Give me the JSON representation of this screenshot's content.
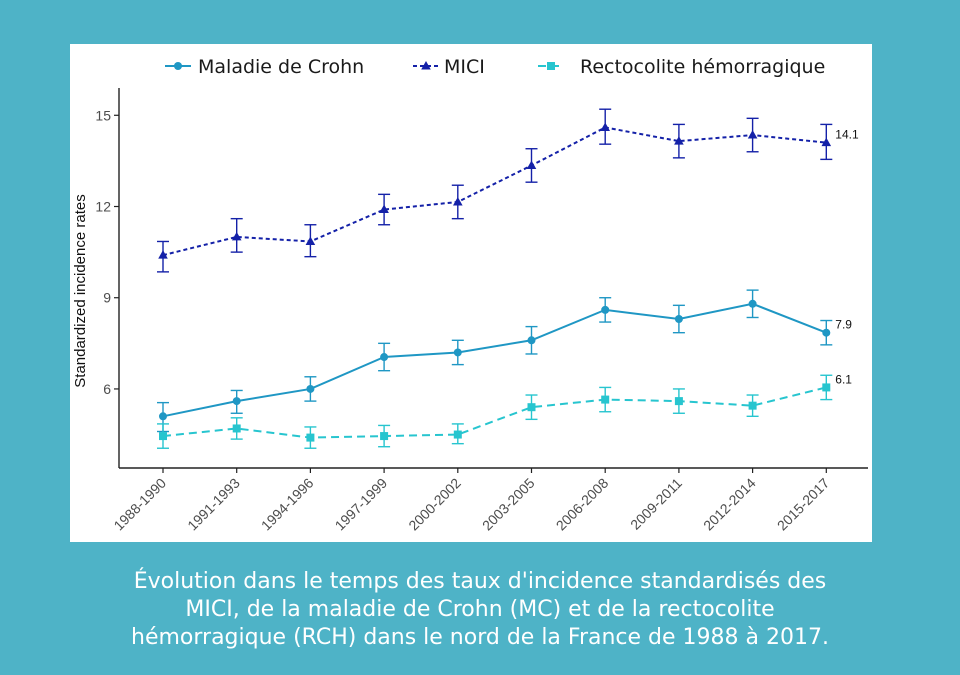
{
  "chart_data": {
    "type": "line",
    "title": "",
    "xlabel": "",
    "ylabel": "Standardized incidence rates",
    "categories": [
      "1988-1990",
      "1991-1993",
      "1994-1996",
      "1997-1999",
      "2000-2002",
      "2003-2005",
      "2006-2008",
      "2009-2011",
      "2012-2014",
      "2015-2017"
    ],
    "yticks": [
      6,
      9,
      12,
      15
    ],
    "ylim": [
      3.4,
      15.7
    ],
    "grid": false,
    "legend_position": "top",
    "series": [
      {
        "name": "Maladie de Crohn",
        "marker": "circle",
        "line_style": "solid",
        "color": "#1f97c4",
        "values": [
          5.1,
          5.6,
          6.0,
          7.05,
          7.2,
          7.6,
          8.6,
          8.3,
          8.8,
          7.85
        ],
        "lower": [
          4.6,
          5.2,
          5.6,
          6.6,
          6.8,
          7.15,
          8.2,
          7.85,
          8.35,
          7.45
        ],
        "upper": [
          5.55,
          5.95,
          6.4,
          7.5,
          7.6,
          8.05,
          9.0,
          8.75,
          9.25,
          8.25
        ],
        "end_label": "7.9"
      },
      {
        "name": "MICI",
        "marker": "triangle",
        "line_style": "dotted",
        "color": "#1421a8",
        "values": [
          10.4,
          11.0,
          10.85,
          11.9,
          12.15,
          13.35,
          14.6,
          14.15,
          14.35,
          14.1
        ],
        "lower": [
          9.85,
          10.5,
          10.35,
          11.4,
          11.6,
          12.8,
          14.05,
          13.6,
          13.8,
          13.55
        ],
        "upper": [
          10.85,
          11.6,
          11.4,
          12.4,
          12.7,
          13.9,
          15.2,
          14.7,
          14.9,
          14.7
        ],
        "end_label": "14.1"
      },
      {
        "name": "Rectocolite hémorragique",
        "marker": "square",
        "line_style": "dashed",
        "color": "#27c5cf",
        "values": [
          4.45,
          4.7,
          4.4,
          4.45,
          4.5,
          5.4,
          5.65,
          5.6,
          5.45,
          6.05
        ],
        "lower": [
          4.05,
          4.35,
          4.05,
          4.1,
          4.2,
          5.0,
          5.25,
          5.2,
          5.1,
          5.65
        ],
        "upper": [
          4.85,
          5.05,
          4.75,
          4.8,
          4.85,
          5.8,
          6.05,
          6.0,
          5.8,
          6.45
        ],
        "end_label": "6.1"
      }
    ]
  },
  "caption": {
    "line1": "Évolution dans le temps des taux d'incidence standardisés des",
    "line2": "MICI, de la maladie de Crohn (MC) et de la rectocolite",
    "line3": "hémorragique (RCH) dans le nord de la France de 1988 à 2017."
  }
}
